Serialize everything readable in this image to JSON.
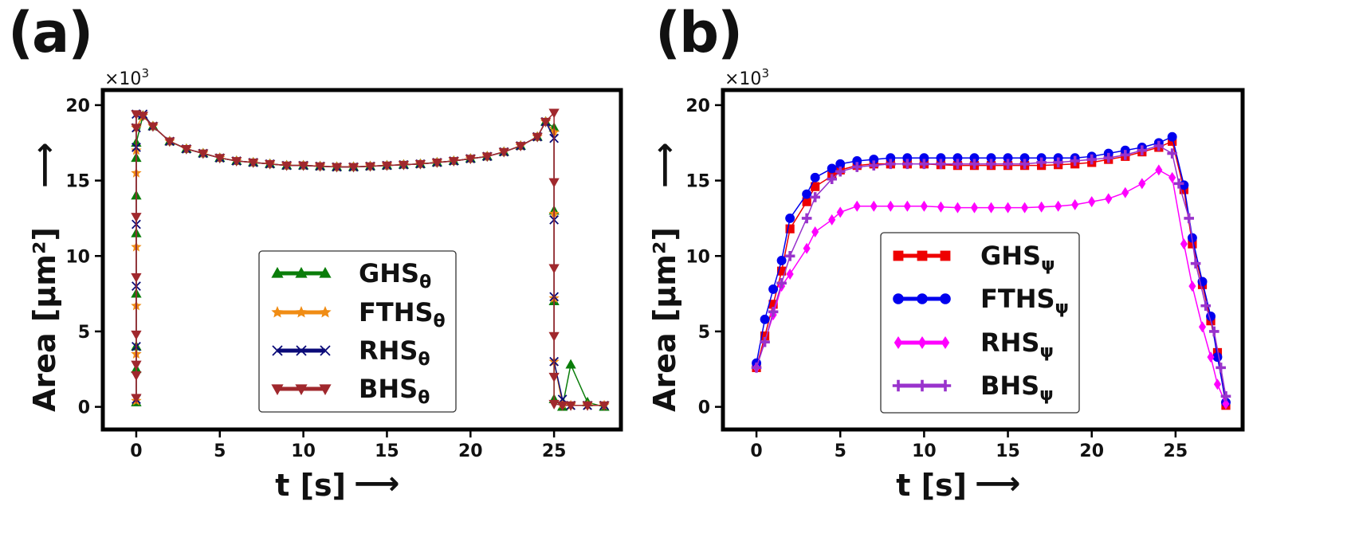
{
  "chart_data": [
    {
      "panel_label": "(a)",
      "type": "line",
      "xlabel": "t [s]",
      "ylabel": "Area [μm²]",
      "arrow": "⟶",
      "scale_prefix": "×10",
      "scale_exp": "3",
      "xlim": [
        -2,
        29
      ],
      "ylim": [
        -1.5,
        21
      ],
      "xticks": [
        0,
        5,
        10,
        15,
        20,
        25
      ],
      "yticks": [
        0,
        5,
        10,
        15,
        20
      ],
      "grid": false,
      "legend_position": "lower-center",
      "series": [
        {
          "name": "GHS",
          "sub": "θ",
          "color": "#0a7d0a",
          "marker": "triangle-up",
          "x": [
            0,
            0,
            0,
            0,
            0,
            0,
            0,
            0,
            0.4,
            1,
            2,
            3,
            4,
            5,
            6,
            7,
            8,
            9,
            10,
            11,
            12,
            13,
            14,
            15,
            16,
            17,
            18,
            19,
            20,
            21,
            22,
            23,
            24,
            24.5,
            25,
            25,
            25,
            25,
            25.5,
            26,
            27,
            28
          ],
          "y": [
            0.3,
            2.5,
            4,
            7.5,
            11.5,
            14,
            16.5,
            17.5,
            19.3,
            18.6,
            17.6,
            17.1,
            16.8,
            16.5,
            16.3,
            16.2,
            16.1,
            16.0,
            16.0,
            15.95,
            15.9,
            15.9,
            15.95,
            16.0,
            16.05,
            16.1,
            16.2,
            16.3,
            16.45,
            16.6,
            16.9,
            17.3,
            17.9,
            18.9,
            18.5,
            13,
            7,
            0.5,
            0.0,
            2.8,
            0.3,
            0
          ]
        },
        {
          "name": "FTHS",
          "sub": "θ",
          "color": "#f08c14",
          "marker": "star",
          "x": [
            0,
            0,
            0,
            0,
            0,
            0,
            0,
            0.4,
            1,
            2,
            3,
            4,
            5,
            6,
            7,
            8,
            9,
            10,
            11,
            12,
            13,
            14,
            15,
            16,
            17,
            18,
            19,
            20,
            21,
            22,
            23,
            24,
            24.5,
            25,
            25,
            25,
            25,
            25.5,
            26,
            27,
            28
          ],
          "y": [
            0.4,
            3.5,
            6.7,
            10.6,
            15.5,
            17,
            18.5,
            19.3,
            18.6,
            17.6,
            17.1,
            16.8,
            16.5,
            16.3,
            16.2,
            16.1,
            16.0,
            16.0,
            15.95,
            15.9,
            15.9,
            15.95,
            16.0,
            16.05,
            16.1,
            16.2,
            16.3,
            16.45,
            16.6,
            16.9,
            17.3,
            17.9,
            18.9,
            18.2,
            12.8,
            7.2,
            3,
            0.2,
            0.1,
            0.1,
            0.1
          ]
        },
        {
          "name": "RHS",
          "sub": "θ",
          "color": "#0a0a78",
          "marker": "x",
          "x": [
            0,
            0,
            0,
            0,
            0,
            0,
            0,
            0.4,
            1,
            2,
            3,
            4,
            5,
            6,
            7,
            8,
            9,
            10,
            11,
            12,
            13,
            14,
            15,
            16,
            17,
            18,
            19,
            20,
            21,
            22,
            23,
            24,
            24.5,
            25,
            25,
            25,
            25,
            25.5,
            26,
            27,
            28
          ],
          "y": [
            0.5,
            4,
            8,
            12.1,
            17.2,
            18.5,
            19.4,
            19.4,
            18.6,
            17.6,
            17.1,
            16.8,
            16.5,
            16.3,
            16.2,
            16.1,
            16.0,
            16.0,
            15.95,
            15.9,
            15.9,
            15.95,
            16.0,
            16.05,
            16.1,
            16.2,
            16.3,
            16.45,
            16.6,
            16.9,
            17.3,
            17.9,
            18.9,
            17.8,
            12.4,
            7.3,
            3.0,
            0.5,
            0.1,
            0.1,
            0.1
          ]
        },
        {
          "name": "BHS",
          "sub": "θ",
          "color": "#a0282d",
          "marker": "triangle-down",
          "x": [
            0,
            0,
            0,
            0,
            0,
            0,
            0,
            0,
            0.4,
            1,
            2,
            3,
            4,
            5,
            6,
            7,
            8,
            9,
            10,
            11,
            12,
            13,
            14,
            15,
            16,
            17,
            18,
            19,
            20,
            21,
            22,
            23,
            24,
            24.5,
            25,
            25,
            25,
            25,
            25,
            25,
            25.5,
            26,
            27,
            28
          ],
          "y": [
            0.6,
            2.1,
            2.8,
            4.8,
            8.6,
            12.6,
            18.5,
            19.4,
            19.3,
            18.6,
            17.6,
            17.1,
            16.8,
            16.5,
            16.3,
            16.2,
            16.1,
            16.0,
            16.0,
            15.95,
            15.9,
            15.9,
            15.95,
            16.0,
            16.05,
            16.1,
            16.2,
            16.3,
            16.45,
            16.6,
            16.9,
            17.3,
            17.9,
            18.9,
            19.5,
            14.9,
            9.2,
            4.7,
            2.0,
            0.2,
            0.1,
            0.1,
            0.1,
            0.1
          ]
        }
      ]
    },
    {
      "panel_label": "(b)",
      "type": "line",
      "xlabel": "t [s]",
      "ylabel": "Area [μm²]",
      "arrow": "⟶",
      "scale_prefix": "×10",
      "scale_exp": "3",
      "xlim": [
        -2,
        29
      ],
      "ylim": [
        -1.5,
        21
      ],
      "xticks": [
        0,
        5,
        10,
        15,
        20,
        25
      ],
      "yticks": [
        0,
        5,
        10,
        15,
        20
      ],
      "grid": false,
      "legend_position": "center",
      "series": [
        {
          "name": "GHS",
          "sub": "ψ",
          "color": "#ee0000",
          "marker": "square",
          "x": [
            0,
            0.5,
            1,
            1.5,
            2,
            3,
            3.5,
            4.5,
            5,
            6,
            7,
            8,
            9,
            10,
            11,
            12,
            13,
            14,
            15,
            16,
            17,
            18,
            19,
            20,
            21,
            22,
            23,
            24,
            24.8,
            25.5,
            26,
            26.6,
            27.1,
            27.5,
            28
          ],
          "y": [
            2.6,
            4.7,
            6.8,
            9.0,
            11.8,
            13.6,
            14.6,
            15.3,
            15.7,
            16.0,
            16.1,
            16.1,
            16.1,
            16.1,
            16.05,
            16.0,
            16.0,
            16.0,
            16.0,
            16.0,
            16.0,
            16.05,
            16.1,
            16.2,
            16.4,
            16.6,
            16.9,
            17.2,
            17.6,
            14.4,
            10.8,
            8.1,
            5.7,
            3.6,
            0.1
          ]
        },
        {
          "name": "FTHS",
          "sub": "ψ",
          "color": "#0000ee",
          "marker": "circle",
          "x": [
            0,
            0.5,
            1,
            1.5,
            2,
            3,
            3.5,
            4.5,
            5,
            6,
            7,
            8,
            9,
            10,
            11,
            12,
            13,
            14,
            15,
            16,
            17,
            18,
            19,
            20,
            21,
            22,
            23,
            24,
            24.8,
            25.5,
            26,
            26.6,
            27.1,
            27.5,
            28
          ],
          "y": [
            2.9,
            5.8,
            7.8,
            9.7,
            12.5,
            14.1,
            15.2,
            15.8,
            16.1,
            16.3,
            16.4,
            16.5,
            16.5,
            16.5,
            16.5,
            16.5,
            16.5,
            16.5,
            16.5,
            16.5,
            16.5,
            16.5,
            16.5,
            16.6,
            16.8,
            17.0,
            17.2,
            17.5,
            17.9,
            14.7,
            11.2,
            8.3,
            6.0,
            3.3,
            0.3
          ]
        },
        {
          "name": "RHS",
          "sub": "ψ",
          "color": "#ff00ff",
          "marker": "diamond",
          "x": [
            0,
            1,
            1.5,
            2,
            3,
            3.5,
            4.5,
            5,
            6,
            7,
            8,
            9,
            10,
            11,
            12,
            13,
            14,
            15,
            16,
            17,
            18,
            19,
            20,
            21,
            22,
            23,
            24,
            24.8,
            25.5,
            26,
            26.6,
            27.1,
            27.5,
            28
          ],
          "y": [
            2.6,
            6.1,
            8.0,
            8.8,
            10.5,
            11.6,
            12.4,
            12.9,
            13.3,
            13.3,
            13.3,
            13.3,
            13.3,
            13.25,
            13.2,
            13.2,
            13.2,
            13.2,
            13.2,
            13.25,
            13.3,
            13.4,
            13.6,
            13.8,
            14.2,
            14.8,
            15.7,
            15.2,
            10.8,
            8.0,
            5.3,
            3.3,
            1.5,
            0.2
          ]
        },
        {
          "name": "BHS",
          "sub": "ψ",
          "color": "#9933cc",
          "marker": "plus",
          "x": [
            0,
            0.5,
            1,
            1.5,
            2,
            3,
            3.5,
            4.5,
            5,
            6,
            7,
            8,
            9,
            10,
            11,
            12,
            13,
            14,
            15,
            16,
            17,
            18,
            19,
            20,
            21,
            22,
            23,
            24,
            24.8,
            25.2,
            25.8,
            26.2,
            26.8,
            27.3,
            27.7,
            28
          ],
          "y": [
            2.6,
            4.3,
            6.3,
            8.2,
            10.0,
            12.5,
            13.9,
            15.1,
            15.6,
            15.9,
            16.0,
            16.1,
            16.1,
            16.1,
            16.1,
            16.1,
            16.1,
            16.1,
            16.1,
            16.1,
            16.2,
            16.2,
            16.3,
            16.4,
            16.5,
            16.7,
            17.0,
            17.3,
            16.8,
            14.8,
            12.5,
            9.5,
            6.7,
            5.0,
            2.6,
            0.7
          ]
        }
      ]
    }
  ]
}
